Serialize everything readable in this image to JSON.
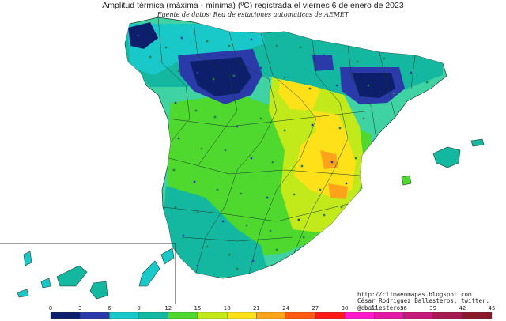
{
  "header": {
    "title": "Amplitud térmica (máxima - mínima) (ºC) registrada el viernes 6 de enero de 2023",
    "subtitle": "Fuente de datos: Red de estaciones automáticas de AEMET"
  },
  "credits": {
    "url": "http://climaenmapas.blogspot.com",
    "author": "César Rodríguez Ballesteros, twitter: @cballesteros"
  },
  "legend": {
    "ticks": [
      "0",
      "3",
      "6",
      "9",
      "12",
      "15",
      "18",
      "21",
      "24",
      "27",
      "30",
      "33",
      "36",
      "39",
      "42",
      "45"
    ],
    "bins": [
      {
        "from": 0,
        "to": 3,
        "color": "#0d1f6b"
      },
      {
        "from": 3,
        "to": 6,
        "color": "#2a3aa8"
      },
      {
        "from": 6,
        "to": 9,
        "color": "#19c9c9"
      },
      {
        "from": 9,
        "to": 12,
        "color": "#14b8a0"
      },
      {
        "from": 12,
        "to": 15,
        "color": "#4fd82e"
      },
      {
        "from": 15,
        "to": 18,
        "color": "#c2ea1a"
      },
      {
        "from": 18,
        "to": 21,
        "color": "#ffe11a"
      },
      {
        "from": 21,
        "to": 24,
        "color": "#ffa41a"
      },
      {
        "from": 24,
        "to": 27,
        "color": "#ff5a10"
      },
      {
        "from": 27,
        "to": 30,
        "color": "#ff1a1a"
      },
      {
        "from": 30,
        "to": 33,
        "color": "#ff19c8"
      },
      {
        "from": 33,
        "to": 36,
        "color": "#e21aa6"
      },
      {
        "from": 36,
        "to": 39,
        "color": "#c41a7c"
      },
      {
        "from": 39,
        "to": 42,
        "color": "#a41a50"
      },
      {
        "from": 42,
        "to": 45,
        "color": "#8a1a2a"
      }
    ]
  },
  "map": {
    "base_color": "#3fd3a3",
    "zone_colors": {
      "very_low": "#0d1f6b",
      "low": "#2a3aa8",
      "cyan": "#19c9c9",
      "teal": "#14b8a0",
      "green": "#4fd82e",
      "yellowgreen": "#c2ea1a",
      "yellow": "#ffe11a",
      "orange": "#ffa41a"
    },
    "boundary_color": "#1a3a2a"
  }
}
